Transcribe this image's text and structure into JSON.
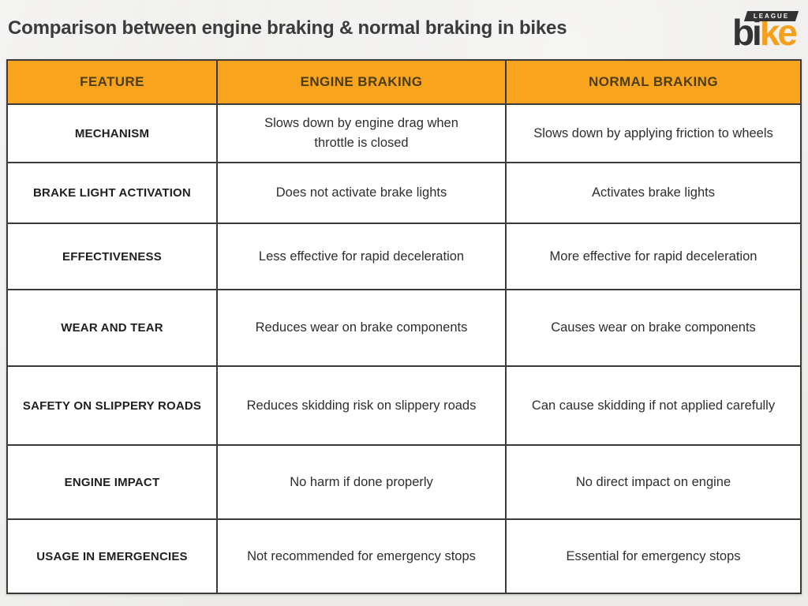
{
  "header": {
    "title": "Comparison between engine braking & normal braking in bikes"
  },
  "logo": {
    "text_dark": "bi",
    "text_orange": "ke",
    "badge": "LEAGUE"
  },
  "colors": {
    "page_bg": "#ECEBE8",
    "title_text": "#3B3B3B",
    "header_bg": "#F8A41F",
    "header_text": "#4C3D12",
    "border": "#3A3A3A",
    "feature_text": "#1F1F1F",
    "cell_text": "#2E2E2E",
    "logo_dark": "#333333",
    "logo_orange": "#F5A01B"
  },
  "chart_data": {
    "type": "table",
    "title": "Comparison between engine braking & normal braking in bikes",
    "columns": [
      "FEATURE",
      "ENGINE BRAKING",
      "NORMAL BRAKING"
    ],
    "rows": [
      [
        "MECHANISM",
        "Slows down by engine drag when throttle is closed",
        "Slows down by applying friction to wheels"
      ],
      [
        "BRAKE LIGHT ACTIVATION",
        "Does not activate brake lights",
        "Activates brake lights"
      ],
      [
        "EFFECTIVENESS",
        "Less effective for rapid deceleration",
        "More effective for rapid deceleration"
      ],
      [
        "WEAR AND TEAR",
        "Reduces wear on brake components",
        "Causes wear on brake components"
      ],
      [
        "SAFETY ON SLIPPERY ROADS",
        "Reduces skidding risk on slippery roads",
        "Can cause skidding if not applied carefully"
      ],
      [
        "ENGINE IMPACT",
        "No harm if done properly",
        "No direct impact on engine"
      ],
      [
        "USAGE IN EMERGENCIES",
        "Not recommended for emergency stops",
        "Essential for emergency stops"
      ]
    ]
  }
}
